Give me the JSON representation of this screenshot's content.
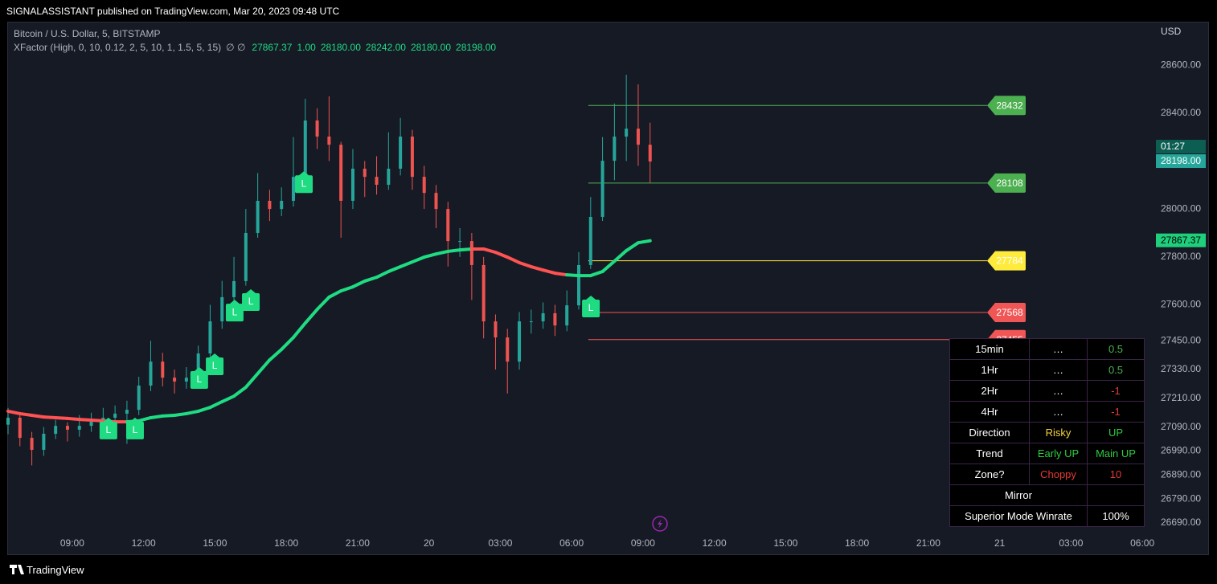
{
  "header": {
    "title": "SIGNALASSISTANT published on TradingView.com, Mar 20, 2023 09:48 UTC",
    "footer": "TradingView"
  },
  "chart_data": {
    "type": "candlestick",
    "title": "Bitcoin / U.S. Dollar, 5, BITSTAMP",
    "indicator": "XFactor (High, 0, 10, 0.12, 2, 5, 10, 1, 1.5, 5, 15)",
    "indicator_flags": "∅ ∅",
    "indicator_values": [
      27867.37,
      {
        "value": 1,
        "label": "1.00"
      },
      {
        "value": 28180,
        "label": "28180.00"
      },
      {
        "value": 28242,
        "label": "28242.00"
      },
      {
        "value": 28180,
        "label": "28180.00"
      },
      {
        "value": 28198,
        "label": "28198.00"
      }
    ],
    "currency": "USD",
    "up_color": "#26a69a",
    "down_color": "#ef5350",
    "grid": false,
    "xlim": [
      -2.7,
      45.3
    ],
    "xticks": [
      {
        "value": 0,
        "label": "09:00"
      },
      {
        "value": 3,
        "label": "12:00"
      },
      {
        "value": 6,
        "label": "15:00"
      },
      {
        "value": 9,
        "label": "18:00"
      },
      {
        "value": 12,
        "label": "21:00"
      },
      {
        "value": 15,
        "label": "20"
      },
      {
        "value": 18,
        "label": "03:00"
      },
      {
        "value": 21,
        "label": "06:00"
      },
      {
        "value": 24,
        "label": "09:00"
      },
      {
        "value": 27,
        "label": "12:00"
      },
      {
        "value": 30,
        "label": "15:00"
      },
      {
        "value": 33,
        "label": "18:00"
      },
      {
        "value": 36,
        "label": "21:00"
      },
      {
        "value": 39,
        "label": "21"
      },
      {
        "value": 42,
        "label": "03:00"
      },
      {
        "value": 45,
        "label": "06:00"
      }
    ],
    "ylim": [
      26643,
      28778
    ],
    "yticks": [
      {
        "value": 28600,
        "label": "28600.00"
      },
      {
        "value": 28400,
        "label": "28400.00"
      },
      {
        "value": 28000,
        "label": "28000.00"
      },
      {
        "value": 27800,
        "label": "27800.00"
      },
      {
        "value": 27600,
        "label": "27600.00"
      },
      {
        "value": 27450,
        "label": "27450.00"
      },
      {
        "value": 27330,
        "label": "27330.00"
      },
      {
        "value": 27210,
        "label": "27210.00"
      },
      {
        "value": 27090,
        "label": "27090.00"
      },
      {
        "value": 26990,
        "label": "26990.00"
      },
      {
        "value": 26890,
        "label": "26890.00"
      },
      {
        "value": 26790,
        "label": "26790.00"
      },
      {
        "value": 26690,
        "label": "26690.00"
      }
    ],
    "x": [
      -2.7,
      -2.2,
      -1.7,
      -1.2,
      -0.7,
      -0.2,
      0.3,
      0.8,
      1.3,
      1.8,
      2.3,
      2.8,
      3.3,
      3.8,
      4.3,
      4.8,
      5.3,
      5.8,
      6.3,
      6.8,
      7.3,
      7.8,
      8.3,
      8.8,
      9.3,
      9.8,
      10.3,
      10.8,
      11.3,
      11.8,
      12.3,
      12.8,
      13.3,
      13.8,
      14.3,
      14.8,
      15.3,
      15.8,
      16.3,
      16.8,
      17.3,
      17.8,
      18.3,
      18.8,
      19.3,
      19.8,
      20.3,
      20.8,
      21.3,
      21.8,
      22.3,
      22.8,
      23.3,
      23.8,
      24.3
    ],
    "open": [
      27100,
      27129,
      27045,
      26995,
      27062,
      27095,
      27079,
      27095,
      27112,
      27129,
      27146,
      27162,
      27263,
      27363,
      27296,
      27280,
      27296,
      27397,
      27531,
      27632,
      27699,
      27900,
      28034,
      28000,
      28034,
      28134,
      28369,
      28302,
      28268,
      28034,
      28168,
      28134,
      28101,
      28168,
      28302,
      28134,
      28067,
      28000,
      27866,
      27866,
      27766,
      27531,
      27464,
      27363,
      27531,
      27531,
      27565,
      27514,
      27598,
      27766,
      27967,
      28201,
      28302,
      28335,
      28268
    ],
    "high": [
      27170,
      27150,
      27070,
      27090,
      27120,
      27110,
      27140,
      27150,
      27170,
      27180,
      27200,
      27300,
      27450,
      27400,
      27330,
      27340,
      27430,
      27600,
      27700,
      27800,
      28000,
      28150,
      28080,
      28090,
      28300,
      28460,
      28420,
      28470,
      28280,
      28250,
      28200,
      28220,
      28320,
      28380,
      28330,
      28180,
      28100,
      28030,
      27920,
      27900,
      27800,
      27560,
      27500,
      27570,
      27580,
      27610,
      27600,
      27660,
      27820,
      28050,
      28300,
      28440,
      28560,
      28520,
      28360
    ],
    "low": [
      27060,
      27010,
      26930,
      26970,
      27040,
      27030,
      27050,
      27070,
      27090,
      27100,
      27020,
      27140,
      27240,
      27260,
      27230,
      27250,
      27280,
      27380,
      27500,
      27600,
      27680,
      27880,
      27950,
      27970,
      28010,
      28120,
      28250,
      28200,
      27880,
      28000,
      28050,
      28060,
      28080,
      28140,
      28080,
      28000,
      27920,
      27760,
      27800,
      27620,
      27460,
      27330,
      27230,
      27330,
      27480,
      27500,
      27470,
      27490,
      27580,
      27750,
      27950,
      28120,
      28200,
      28180,
      28110
    ],
    "close": [
      27129,
      27045,
      26995,
      27062,
      27095,
      27079,
      27095,
      27112,
      27129,
      27146,
      27162,
      27263,
      27363,
      27296,
      27280,
      27296,
      27397,
      27531,
      27632,
      27699,
      27900,
      28034,
      28000,
      28034,
      28134,
      28369,
      28302,
      28268,
      28034,
      28168,
      28134,
      28101,
      28168,
      28302,
      28134,
      28067,
      28000,
      27866,
      27866,
      27766,
      27531,
      27464,
      27363,
      27531,
      27531,
      27565,
      27514,
      27598,
      27766,
      27967,
      28201,
      28302,
      28335,
      28268,
      28198
    ],
    "ma": {
      "values": [
        27156,
        27146,
        27139,
        27132,
        27129,
        27126,
        27122,
        27119,
        27116,
        27112,
        27112,
        27116,
        27129,
        27136,
        27139,
        27146,
        27156,
        27172,
        27196,
        27219,
        27256,
        27313,
        27370,
        27414,
        27464,
        27524,
        27581,
        27632,
        27658,
        27675,
        27699,
        27715,
        27739,
        27759,
        27779,
        27799,
        27812,
        27823,
        27829,
        27833,
        27833,
        27819,
        27799,
        27776,
        27759,
        27745,
        27732,
        27725,
        27722,
        27722,
        27739,
        27782,
        27826,
        27859,
        27867.37
      ],
      "colors": [
        "#ff5252",
        "#ff5252",
        "#ff5252",
        "#ff5252",
        "#ff5252",
        "#ff5252",
        "#ff5252",
        "#ff5252",
        "#ff5252",
        "#ff5252",
        "#ff5252",
        "#1fdc83",
        "#1fdc83",
        "#1fdc83",
        "#1fdc83",
        "#1fdc83",
        "#1fdc83",
        "#1fdc83",
        "#1fdc83",
        "#1fdc83",
        "#1fdc83",
        "#1fdc83",
        "#1fdc83",
        "#1fdc83",
        "#1fdc83",
        "#1fdc83",
        "#1fdc83",
        "#1fdc83",
        "#1fdc83",
        "#1fdc83",
        "#1fdc83",
        "#1fdc83",
        "#1fdc83",
        "#1fdc83",
        "#1fdc83",
        "#1fdc83",
        "#1fdc83",
        "#1fdc83",
        "#1fdc83",
        "#1fdc83",
        "#ff5252",
        "#ff5252",
        "#ff5252",
        "#ff5252",
        "#ff5252",
        "#ff5252",
        "#ff5252",
        "#ff5252",
        "#1fdc83",
        "#1fdc83",
        "#1fdc83",
        "#1fdc83",
        "#1fdc83",
        "#1fdc83",
        "#1fdc83"
      ],
      "label_color": "#1fcf7c"
    },
    "signals": [
      {
        "x": 1.52,
        "price": 27079,
        "label": "L"
      },
      {
        "x": 2.64,
        "price": 27079,
        "label": "L"
      },
      {
        "x": 5.34,
        "price": 27290,
        "label": "L"
      },
      {
        "x": 5.99,
        "price": 27347,
        "label": "L"
      },
      {
        "x": 6.83,
        "price": 27571,
        "label": "L"
      },
      {
        "x": 7.51,
        "price": 27615,
        "label": "L"
      },
      {
        "x": 9.74,
        "price": 28107,
        "label": "L"
      },
      {
        "x": 21.81,
        "price": 27588,
        "label": "L"
      }
    ],
    "signal_color": "#1fdc83",
    "levels_start": 21.7,
    "levels": [
      {
        "value": 28432,
        "color": "#4caf50"
      },
      {
        "value": 28108,
        "color": "#4caf50"
      },
      {
        "value": 27784,
        "color": "#ffeb3b"
      },
      {
        "value": 27568,
        "color": "#f05656"
      },
      {
        "value": 27455,
        "color": "#f05656"
      }
    ],
    "last_price": {
      "value": 28198,
      "label": "28198.00"
    },
    "countdown": "01:27"
  },
  "table": {
    "rows": [
      [
        {
          "text": "15min"
        },
        {
          "text": "…"
        },
        {
          "text": 0.5,
          "color": "#4caf50"
        }
      ],
      [
        {
          "text": "1Hr"
        },
        {
          "text": "…"
        },
        {
          "text": 0.5,
          "color": "#4caf50"
        }
      ],
      [
        {
          "text": "2Hr"
        },
        {
          "text": "…"
        },
        {
          "text": -1,
          "color": "#e53935"
        }
      ],
      [
        {
          "text": "4Hr"
        },
        {
          "text": "…"
        },
        {
          "text": -1,
          "color": "#e53935"
        }
      ],
      [
        {
          "text": "Direction"
        },
        {
          "text": "Risky",
          "color": "#f4d03f"
        },
        {
          "text": "UP",
          "color": "#2ecc40"
        }
      ],
      [
        {
          "text": "Trend"
        },
        {
          "text": "Early UP",
          "color": "#2ecc40"
        },
        {
          "text": "Main UP",
          "color": "#2ecc40"
        }
      ],
      [
        {
          "text": "Zone?"
        },
        {
          "text": "Choppy",
          "color": "#e53935"
        },
        {
          "text": 10,
          "color": "#e53935"
        }
      ],
      [
        {
          "text": "Mirror"
        },
        {
          "text": "…",
          "color": "#000000"
        }
      ],
      [
        {
          "text": "Superior Mode Winrate"
        },
        {
          "value": 100,
          "label": "100%"
        }
      ]
    ]
  }
}
